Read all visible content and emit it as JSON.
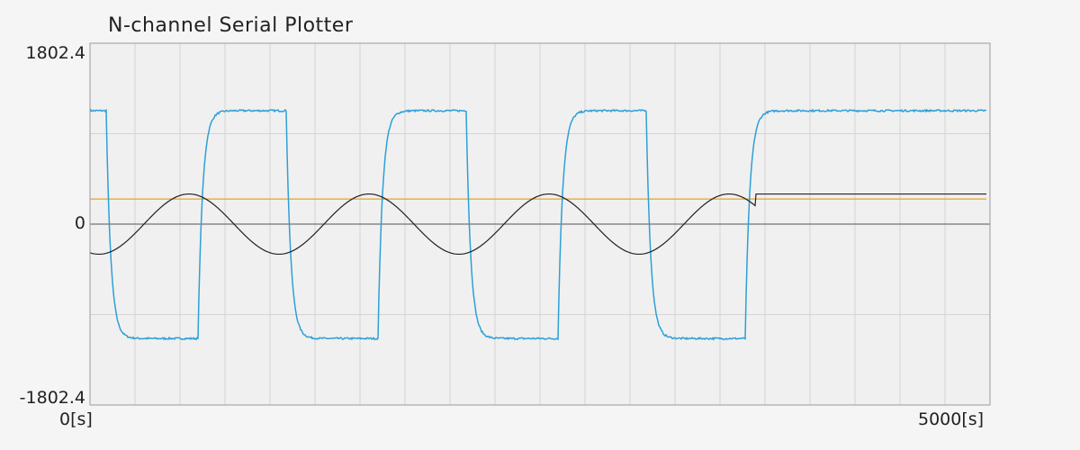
{
  "window": {
    "title": "N-channel Serial Plotter"
  },
  "chart_data": {
    "type": "line",
    "title": "N-channel Serial Plotter",
    "ylim": [
      -1802.4,
      1802.4
    ],
    "xlim": [
      0,
      5000
    ],
    "y_tick_labels": [
      "1802.4",
      "0",
      "-1802.4"
    ],
    "x_tick_labels": [
      "0[s]",
      "5000[s]"
    ],
    "grid": true,
    "zero_line": true,
    "series": [
      {
        "color": "#2e9fd6",
        "shape": "square-wave",
        "high": 1130,
        "low": -1140,
        "transitions": [
          [
            90,
            "down"
          ],
          [
            600,
            "up"
          ],
          [
            1090,
            "down"
          ],
          [
            1600,
            "up"
          ],
          [
            2090,
            "down"
          ],
          [
            2600,
            "up"
          ],
          [
            3090,
            "down"
          ],
          [
            3640,
            "up"
          ]
        ],
        "values_x": [
          0,
          90,
          180,
          600,
          690,
          1090,
          1180,
          1600,
          1690,
          2090,
          2180,
          2600,
          2690,
          3090,
          3180,
          3640,
          3730,
          4980
        ],
        "values_y": [
          1130,
          1130,
          -1140,
          -1140,
          1130,
          1130,
          -1140,
          -1140,
          1130,
          1130,
          -1140,
          -1140,
          1130,
          1130,
          -1140,
          -1140,
          1130,
          1130
        ]
      },
      {
        "color": "#e8a325",
        "shape": "constant",
        "x": [
          0,
          4980
        ],
        "y": [
          250,
          250
        ]
      },
      {
        "color": "#222222",
        "shape": "sine-then-constant",
        "amplitude": 300,
        "period": 1000,
        "phase_x": 300,
        "stop_x": 3700,
        "constant_after": 300,
        "x_start": 0,
        "x_end": 4980
      }
    ]
  }
}
